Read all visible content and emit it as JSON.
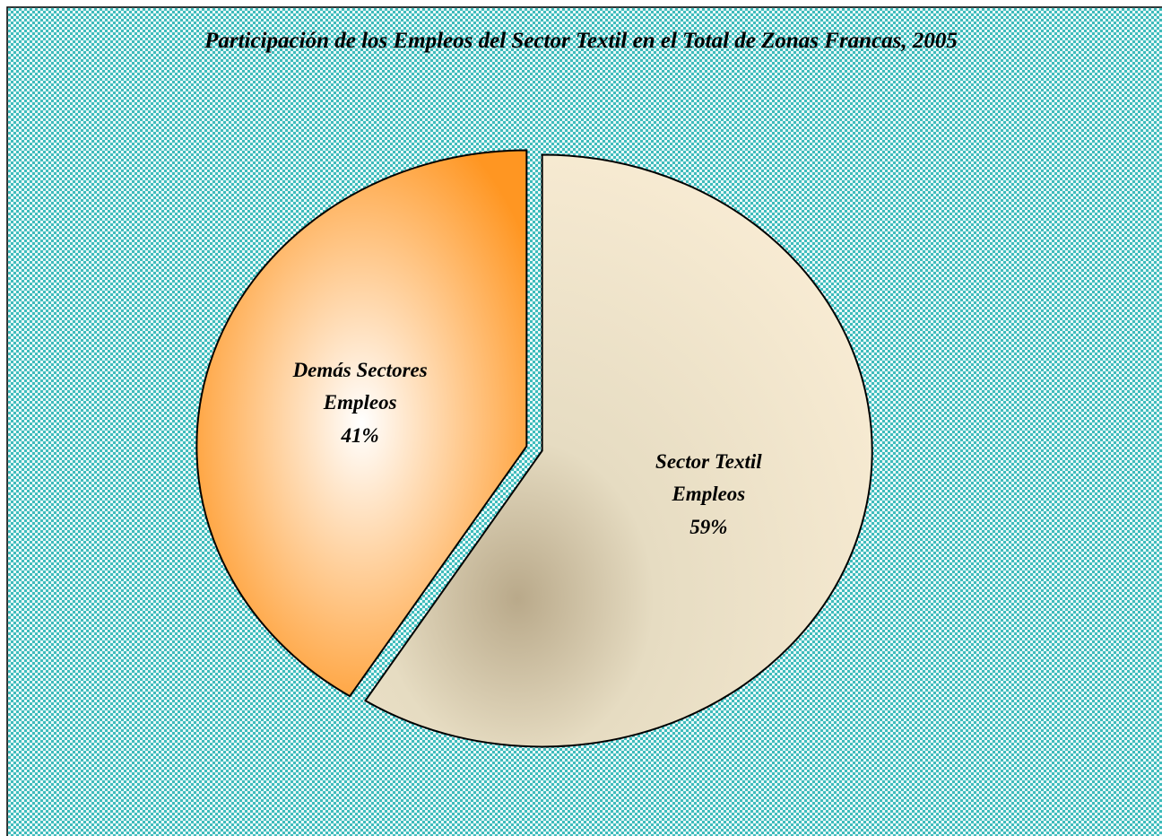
{
  "chart_data": {
    "type": "pie",
    "title": "Participación de los Empleos del Sector Textil en el Total de Zonas Francas,  2005",
    "categories": [
      "Sector Textil Empleos",
      "Demás Sectores Empleos"
    ],
    "values": [
      59,
      41
    ],
    "value_labels": [
      "59%",
      "41%"
    ],
    "colors": [
      "#f1e6c8",
      "#ff9622"
    ]
  }
}
